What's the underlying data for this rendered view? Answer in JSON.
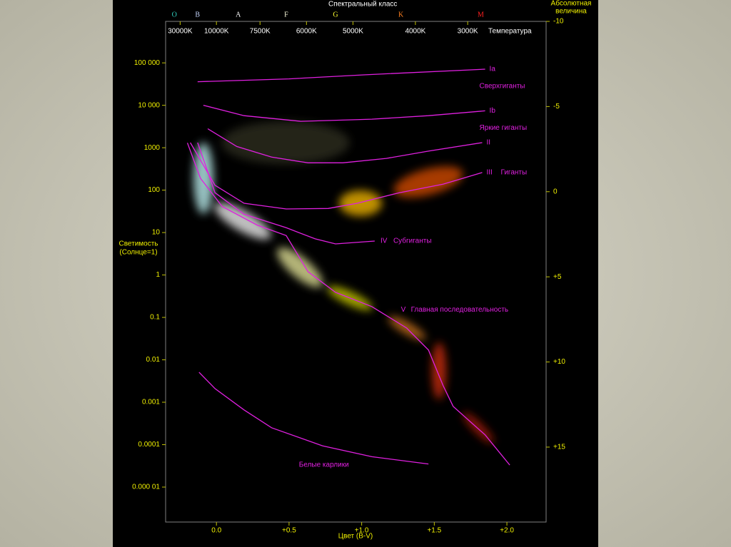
{
  "chart_data": {
    "type": "line",
    "title": "Спектральный класс",
    "x_label": "Цвет (B-V)",
    "y_label": [
      "Светимость",
      "(Солнце=1)"
    ],
    "y2_label": [
      "Абсолютная",
      "величина"
    ],
    "x2_label": "Температура",
    "log_y": true,
    "xlim": [
      -0.35,
      2.27
    ],
    "xticks": [
      {
        "value": 0,
        "label": "0.0"
      },
      {
        "value": 0.5,
        "label": "+0.5"
      },
      {
        "value": 1,
        "label": "+1.0"
      },
      {
        "value": 1.5,
        "label": "+1.5"
      },
      {
        "value": 2,
        "label": "+2.0"
      }
    ],
    "ylim": [
      1.5e-06,
      950000
    ],
    "yticks": [
      {
        "value": 100000,
        "label": "100 000"
      },
      {
        "value": 10000,
        "label": "10 000"
      },
      1000,
      100,
      10,
      1,
      0.1,
      0.01,
      0.001,
      0.0001,
      {
        "value": 1e-05,
        "label": "0.000 01"
      }
    ],
    "y2lim": [
      19.4,
      -10
    ],
    "y2ticks": [
      -10,
      -5,
      0,
      {
        "value": 5,
        "label": "+5"
      },
      {
        "value": 10,
        "label": "+10"
      },
      {
        "value": 15,
        "label": "+15"
      }
    ],
    "x2ticks": [
      {
        "value": -0.25,
        "label": "30000K"
      },
      {
        "value": 0,
        "label": "10000K"
      },
      {
        "value": 0.3,
        "label": "7500K"
      },
      {
        "value": 0.62,
        "label": "6000K"
      },
      {
        "value": 0.94,
        "label": "5000K"
      },
      {
        "value": 1.37,
        "label": "4000K"
      },
      {
        "value": 1.73,
        "label": "3000K"
      }
    ],
    "spectral_classes": [
      {
        "label": "O",
        "value": -0.29,
        "color": "#30d0c0"
      },
      {
        "label": "B",
        "value": -0.13,
        "color": "#c8d8ff"
      },
      {
        "label": "A",
        "value": 0.15,
        "color": "#ffffff"
      },
      {
        "label": "F",
        "value": 0.48,
        "color": "#ffffe0"
      },
      {
        "label": "G",
        "value": 0.82,
        "color": "#ffff30"
      },
      {
        "label": "K",
        "value": 1.27,
        "color": "#ff8020"
      },
      {
        "label": "M",
        "value": 1.82,
        "color": "#ff2020"
      }
    ],
    "series": [
      {
        "name": "Ia",
        "label": "Сверхгиганты",
        "color": "#e020e0",
        "x": [
          -0.13,
          0.5,
          1.0,
          1.85
        ],
        "values": [
          36000,
          42000,
          52000,
          71000
        ]
      },
      {
        "name": "Ib",
        "label": "Яркие гиганты",
        "color": "#e020e0",
        "x": [
          -0.09,
          0.19,
          0.58,
          1.07,
          1.46,
          1.85
        ],
        "values": [
          10000,
          5700,
          4200,
          4700,
          5700,
          7400
        ]
      },
      {
        "name": "II",
        "color": "#e020e0",
        "x": [
          -0.06,
          0.14,
          0.38,
          0.63,
          0.87,
          1.17,
          1.46,
          1.83
        ],
        "values": [
          2800,
          1070,
          600,
          440,
          440,
          560,
          830,
          1320
        ]
      },
      {
        "name": "III",
        "label": "Гиганты",
        "color": "#e020e0",
        "x": [
          -0.18,
          -0.01,
          0.19,
          0.48,
          0.77,
          0.97,
          1.26,
          1.56,
          1.83
        ],
        "values": [
          1320,
          130,
          49,
          36,
          37,
          49,
          87,
          138,
          260
        ]
      },
      {
        "name": "IV",
        "label": "Субгиганты",
        "color": "#e020e0",
        "x": [
          -0.13,
          -0.01,
          0.19,
          0.48,
          0.68,
          0.82,
          1.09
        ],
        "values": [
          1320,
          87,
          27,
          13,
          7.1,
          5.4,
          6.3
        ]
      },
      {
        "name": "V",
        "label": "Главная последовательность",
        "color": "#e020e0",
        "x": [
          -0.2,
          -0.11,
          0.04,
          0.28,
          0.48,
          0.63,
          0.82,
          1.07,
          1.31,
          1.46,
          1.56,
          1.63,
          1.85,
          2.02
        ],
        "values": [
          1300,
          190,
          41,
          15,
          8.5,
          1.2,
          0.39,
          0.18,
          0.056,
          0.017,
          0.0025,
          0.0008,
          0.00017,
          3.3e-05
        ]
      },
      {
        "name": "Белые карлики",
        "color": "#e020e0",
        "x": [
          -0.12,
          -0.01,
          0.19,
          0.38,
          0.73,
          1.07,
          1.46
        ],
        "values": [
          0.0051,
          0.0021,
          0.00066,
          0.00025,
          9.4e-05,
          5.2e-05,
          3.5e-05
        ]
      }
    ]
  }
}
